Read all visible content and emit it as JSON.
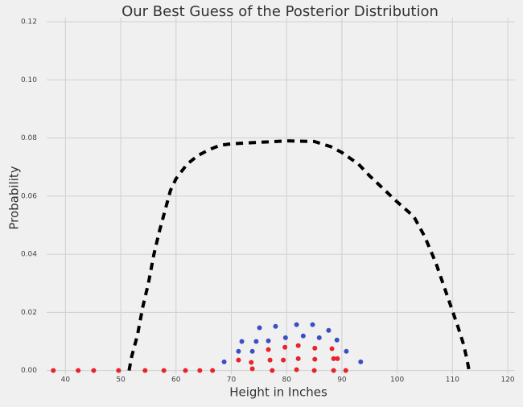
{
  "chart_data": {
    "type": "scatter",
    "title": "Our Best Guess of the Posterior Distribution",
    "x_label": "Height in Inches",
    "y_label": "Probability",
    "xlim": [
      36.6,
      121.3
    ],
    "ylim": [
      -0.0012,
      0.12
    ],
    "xticks": [
      40,
      50,
      60,
      70,
      80,
      90,
      100,
      110,
      120
    ],
    "yticks": [
      {
        "value": 0,
        "label": "0.00"
      },
      {
        "value": 0.02,
        "label": "0.02"
      },
      {
        "value": 0.04,
        "label": "0.04"
      },
      {
        "value": 0.06,
        "label": "0.06"
      },
      {
        "value": 0.08,
        "label": "0.08"
      },
      {
        "value": 0.1,
        "label": "0.10"
      },
      {
        "value": 0.12,
        "label": "0.12"
      }
    ],
    "grid": true,
    "series": [
      {
        "type": "line",
        "line_style": "dashed",
        "color": "#000000",
        "x": [
          51.5,
          52,
          53,
          54,
          55,
          56,
          57,
          58,
          59,
          60,
          62,
          64,
          66,
          68,
          70,
          75,
          80,
          85,
          88,
          90,
          93,
          95,
          100,
          103,
          105,
          107,
          109,
          111,
          112,
          112.6,
          113
        ],
        "values": [
          0,
          0.005,
          0.012,
          0.022,
          0.03,
          0.04,
          0.048,
          0.055,
          0.062,
          0.066,
          0.071,
          0.074,
          0.076,
          0.0775,
          0.078,
          0.0785,
          0.079,
          0.0788,
          0.077,
          0.075,
          0.071,
          0.067,
          0.058,
          0.053,
          0.046,
          0.037,
          0.026,
          0.015,
          0.009,
          0.004,
          0
        ]
      },
      {
        "type": "scatter",
        "color": "#3a4fc4",
        "x": [
          68.7,
          71.3,
          71.9,
          73.8,
          74.5,
          75.1,
          76.7,
          78.0,
          79.8,
          81.8,
          83.0,
          84.7,
          85.9,
          87.6,
          89.1,
          90.8,
          93.4
        ],
        "values": [
          0.003,
          0.0066,
          0.01,
          0.0066,
          0.01,
          0.0147,
          0.0102,
          0.0152,
          0.0113,
          0.0158,
          0.0119,
          0.0158,
          0.0113,
          0.0138,
          0.0105,
          0.0066,
          0.003
        ]
      },
      {
        "type": "scatter",
        "color": "#e8232a",
        "x": [
          37.8,
          42.3,
          45.1,
          49.6,
          54.4,
          57.8,
          61.7,
          64.3,
          66.6,
          71.3,
          73.6,
          73.8,
          77.0,
          76.7,
          77.4,
          79.4,
          79.7,
          82.1,
          82.1,
          81.8,
          85.1,
          85.1,
          85.0,
          88.2,
          88.5,
          88.5,
          90.7,
          89.2
        ],
        "values": [
          0,
          0,
          0,
          0,
          0,
          0,
          0,
          0,
          0,
          0.0036,
          0.0028,
          0.0006,
          0.0036,
          0.0072,
          0,
          0.0036,
          0.008,
          0.0086,
          0.0041,
          0.0003,
          0.0077,
          0.0039,
          0,
          0.0075,
          0.0041,
          0,
          0,
          0.0041
        ]
      }
    ]
  }
}
